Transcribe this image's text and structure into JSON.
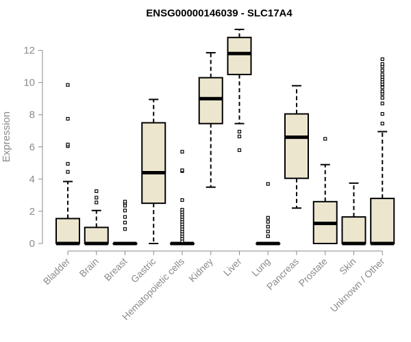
{
  "chart_data": {
    "type": "box",
    "title": "ENSG00000146039 - SLC17A4",
    "xlabel": "",
    "ylabel": "Expression",
    "ylim": [
      0,
      13.3
    ],
    "yticks": [
      0,
      2,
      4,
      6,
      8,
      10,
      12
    ],
    "grid": false,
    "box_color": "#ede6cf",
    "median_color": "#000000",
    "categories": [
      "Bladder",
      "Brain",
      "Breast",
      "Gastric",
      "Hematopoietic cells",
      "Kidney",
      "Liver",
      "Lung",
      "Pancreas",
      "Prostate",
      "Skin",
      "Unknown / Other"
    ],
    "boxes": [
      {
        "name": "Bladder",
        "q1": 0,
        "median": 0,
        "q3": 1.55,
        "whisker_low": 0,
        "whisker_high": 3.85,
        "outliers": [
          4.45,
          4.95,
          6.05,
          6.15,
          7.75,
          9.85
        ]
      },
      {
        "name": "Brain",
        "q1": 0,
        "median": 0,
        "q3": 1.0,
        "whisker_low": 0,
        "whisker_high": 2.05,
        "outliers": [
          2.55,
          2.85,
          3.25
        ]
      },
      {
        "name": "Breast",
        "q1": 0,
        "median": 0,
        "q3": 0,
        "whisker_low": 0,
        "whisker_high": 0,
        "outliers": [
          0.9,
          1.3,
          1.65,
          2.05,
          2.35,
          2.5,
          2.6
        ]
      },
      {
        "name": "Gastric",
        "q1": 2.5,
        "median": 4.4,
        "q3": 7.5,
        "whisker_low": 0,
        "whisker_high": 8.95,
        "outliers": []
      },
      {
        "name": "Hematopoietic cells",
        "q1": 0,
        "median": 0,
        "q3": 0,
        "whisker_low": 0,
        "whisker_high": 0,
        "outliers": [
          0.15,
          0.3,
          0.45,
          0.6,
          0.75,
          0.9,
          1.05,
          1.2,
          1.35,
          1.5,
          1.65,
          1.8,
          1.95,
          2.1,
          2.7,
          4.5,
          4.55,
          5.7
        ]
      },
      {
        "name": "Kidney",
        "q1": 7.45,
        "median": 9.0,
        "q3": 10.3,
        "whisker_low": 3.5,
        "whisker_high": 11.85,
        "outliers": []
      },
      {
        "name": "Liver",
        "q1": 10.5,
        "median": 11.8,
        "q3": 12.8,
        "whisker_low": 7.45,
        "whisker_high": 13.3,
        "outliers": [
          5.8,
          6.65,
          6.95
        ]
      },
      {
        "name": "Lung",
        "q1": 0,
        "median": 0,
        "q3": 0,
        "whisker_low": 0,
        "whisker_high": 0,
        "outliers": [
          0.45,
          0.75,
          1.05,
          1.35,
          1.6,
          3.7
        ]
      },
      {
        "name": "Pancreas",
        "q1": 4.05,
        "median": 6.6,
        "q3": 8.05,
        "whisker_low": 2.2,
        "whisker_high": 9.8,
        "outliers": []
      },
      {
        "name": "Prostate",
        "q1": 0,
        "median": 1.25,
        "q3": 2.6,
        "whisker_low": 0,
        "whisker_high": 4.9,
        "outliers": [
          6.5
        ]
      },
      {
        "name": "Skin",
        "q1": 0,
        "median": 0,
        "q3": 1.65,
        "whisker_low": 0,
        "whisker_high": 3.75,
        "outliers": []
      },
      {
        "name": "Unknown / Other",
        "q1": 0,
        "median": 0,
        "q3": 2.8,
        "whisker_low": 0,
        "whisker_high": 6.95,
        "outliers": [
          7.45,
          8.05,
          8.7,
          9.05,
          9.3,
          9.45,
          9.7,
          9.9,
          10.05,
          10.2,
          10.35,
          10.5,
          10.75,
          11.0,
          11.15,
          11.45
        ]
      }
    ]
  }
}
